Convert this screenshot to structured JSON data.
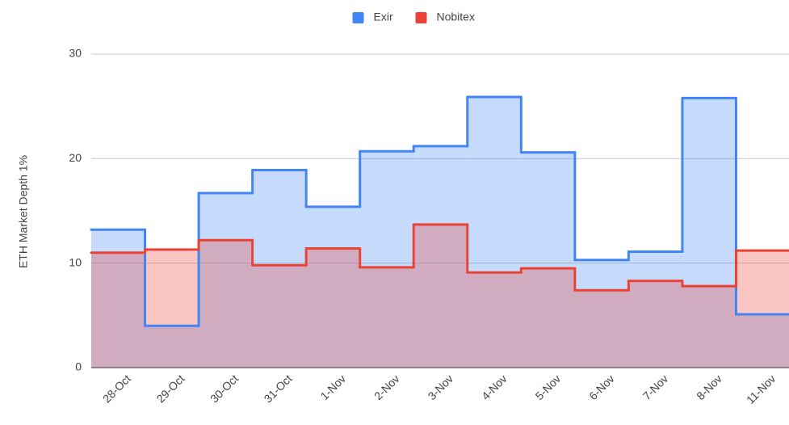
{
  "chart_data": {
    "type": "steppedArea",
    "ylabel": "ETH Market Depth 1%",
    "categories": [
      "28-Oct",
      "29-Oct",
      "30-Oct",
      "31-Oct",
      "1-Nov",
      "2-Nov",
      "3-Nov",
      "4-Nov",
      "5-Nov",
      "6-Nov",
      "7-Nov",
      "8-Nov",
      "11-Nov"
    ],
    "series": [
      {
        "name": "Exir",
        "color": "#4285f4",
        "values": [
          13.2,
          4.0,
          16.7,
          18.9,
          15.4,
          20.7,
          21.2,
          25.9,
          20.6,
          10.3,
          11.1,
          25.8,
          5.1
        ]
      },
      {
        "name": "Nobitex",
        "color": "#ea4335",
        "values": [
          11.0,
          11.3,
          12.2,
          9.8,
          11.4,
          9.6,
          13.7,
          9.1,
          9.5,
          7.4,
          8.3,
          7.8,
          11.2
        ]
      }
    ],
    "ylim": [
      0,
      30
    ],
    "yticks": [
      0,
      10,
      20,
      30
    ],
    "grid": true,
    "legend": "top"
  }
}
